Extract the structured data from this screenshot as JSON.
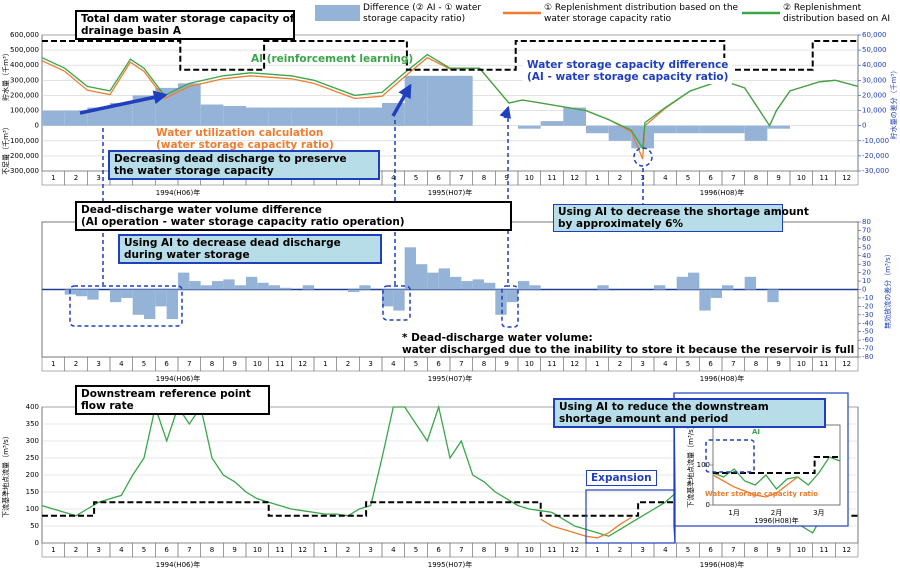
{
  "chart_data": [
    {
      "type": "line",
      "ylabel": "貯水量（千m³）",
      "ylabel_negative": "不足量（千m³）",
      "y2label": "貯水量の差分（千m³）",
      "xlim": [
        0,
        36
      ],
      "ylim": [
        -300000,
        600000
      ],
      "yticks": [
        {
          "value": 600000,
          "label": "600,000"
        },
        {
          "value": 500000,
          "label": "500,000"
        },
        {
          "value": 400000,
          "label": "400,000"
        },
        {
          "value": 300000,
          "label": "300,000"
        },
        {
          "value": 200000,
          "label": "200,000"
        },
        {
          "value": 100000,
          "label": "100,000"
        },
        0,
        {
          "value": -100000,
          "label": "-100,000"
        },
        {
          "value": -200000,
          "label": "-200,000"
        },
        {
          "value": -300000,
          "label": "-300,000"
        }
      ],
      "y2lim": [
        -30000,
        60000
      ],
      "y2ticks": [
        {
          "value": 60000,
          "label": "60,000"
        },
        {
          "value": 50000,
          "label": "50,000"
        },
        {
          "value": 40000,
          "label": "40,000"
        },
        {
          "value": 30000,
          "label": "30,000"
        },
        {
          "value": 20000,
          "label": "20,000"
        },
        {
          "value": 10000,
          "label": "10,000"
        },
        0,
        {
          "value": -10000,
          "label": "-10,000"
        },
        {
          "value": -20000,
          "label": "-20,000"
        },
        {
          "value": -30000,
          "label": "-30,000"
        }
      ],
      "grid": true,
      "month_labels": [
        1,
        2,
        3,
        4,
        5,
        6,
        7,
        8,
        9,
        10,
        11,
        12,
        1,
        2,
        3,
        4,
        5,
        6,
        7,
        8,
        9,
        10,
        11,
        12,
        1,
        2,
        3,
        4,
        5,
        6,
        7,
        8,
        9,
        10,
        11,
        12
      ],
      "year_labels": [
        "1994(H06)年",
        "1995(H07)年",
        "1996(H08)年"
      ],
      "series": [
        {
          "name": "Difference (② AI - ① water storage capacity ratio)",
          "color": "#95b3d7",
          "kind": "bar",
          "axis": "y2",
          "x": [
            0,
            1,
            2,
            3,
            4,
            5,
            6,
            7,
            8,
            9,
            10,
            11,
            12,
            13,
            14,
            15,
            16,
            17,
            18,
            19,
            20,
            21,
            22,
            23,
            24,
            25,
            26,
            27,
            28,
            29,
            30,
            31,
            32,
            33,
            34,
            35
          ],
          "values": [
            10000,
            10000,
            12000,
            15000,
            20000,
            25000,
            28000,
            14000,
            13000,
            12000,
            12000,
            12000,
            12000,
            12000,
            12000,
            15000,
            33000,
            33000,
            33000,
            0,
            0,
            -2000,
            3000,
            12000,
            -5000,
            -10000,
            -15000,
            -5000,
            -5000,
            -5000,
            -5000,
            -10000,
            -2000,
            0,
            0,
            0
          ]
        },
        {
          "name": "① Replenishment distribution based on the water storage capacity ratio",
          "color": "#ed7d31",
          "kind": "line",
          "x": [
            0,
            1,
            2,
            3,
            3.9,
            4.5,
            5.4,
            6.5,
            8,
            9.2,
            11,
            12,
            13.8,
            15,
            16,
            17,
            18,
            19.3,
            20.6,
            21.2,
            22,
            24,
            25,
            26,
            26.5,
            26.6,
            27.5,
            28.6,
            30,
            31,
            32.1,
            32.4,
            33,
            34.3,
            35,
            36
          ],
          "values": [
            430000,
            360000,
            235000,
            205000,
            420000,
            360000,
            180000,
            260000,
            310000,
            330000,
            310000,
            280000,
            180000,
            195000,
            325000,
            450000,
            375000,
            380000,
            150000,
            170000,
            150000,
            100000,
            40000,
            -40000,
            -220000,
            0,
            115000,
            230000,
            300000,
            250000,
            0,
            100000,
            230000,
            290000,
            300000,
            260000
          ]
        },
        {
          "name": "② Replenishment distribution based on AI",
          "color": "#3aa64a",
          "kind": "line",
          "x": [
            0,
            1,
            2,
            3,
            3.9,
            4.5,
            5.4,
            6.5,
            8,
            9.2,
            11,
            12,
            13.8,
            15,
            16,
            17,
            18,
            19.3,
            20.6,
            21.2,
            22,
            24,
            25,
            26,
            26.5,
            26.6,
            27.5,
            28.6,
            30,
            31,
            32.1,
            32.4,
            33,
            34.3,
            35,
            36
          ],
          "values": [
            450000,
            380000,
            260000,
            230000,
            440000,
            380000,
            200000,
            280000,
            330000,
            350000,
            330000,
            300000,
            200000,
            220000,
            350000,
            470000,
            380000,
            380000,
            150000,
            170000,
            150000,
            100000,
            40000,
            -30000,
            -150000,
            20000,
            120000,
            230000,
            300000,
            250000,
            0,
            100000,
            230000,
            290000,
            300000,
            260000
          ]
        },
        {
          "color": "#000000",
          "kind": "line",
          "dashed": true,
          "x": [
            0,
            6.1,
            6.1,
            9.8,
            9.8,
            16.1,
            16.1,
            20.9,
            20.9,
            30.1,
            30.1,
            34,
            34,
            36
          ],
          "values": [
            560000,
            560000,
            370000,
            370000,
            560000,
            560000,
            370000,
            370000,
            560000,
            560000,
            370000,
            370000,
            560000,
            560000
          ]
        }
      ]
    },
    {
      "type": "bar",
      "ylabel": "無効放流の差分（m³/s）",
      "yaxis_side": "right",
      "zero_line": true,
      "xlim": [
        0,
        36
      ],
      "ylim": [
        -80,
        80
      ],
      "yticks": [
        80,
        70,
        60,
        50,
        40,
        30,
        20,
        10,
        0,
        -10,
        -20,
        -30,
        -40,
        -50,
        -60,
        -70,
        -80
      ],
      "grid": false,
      "month_labels": [
        1,
        2,
        3,
        4,
        5,
        6,
        7,
        8,
        9,
        10,
        11,
        12,
        1,
        2,
        3,
        4,
        5,
        6,
        7,
        8,
        9,
        10,
        11,
        12,
        1,
        2,
        3,
        4,
        5,
        6,
        7,
        8,
        9,
        10,
        11,
        12
      ],
      "year_labels": [
        "1994(H06)年",
        "1995(H07)年",
        "1996(H08)年"
      ],
      "x": [
        0,
        0.5,
        1,
        1.5,
        2,
        2.5,
        3,
        3.5,
        4,
        4.5,
        5,
        5.5,
        6,
        6.5,
        7,
        7.5,
        8,
        8.5,
        9,
        9.5,
        10,
        10.5,
        11,
        11.5,
        12,
        12.5,
        13,
        13.5,
        14,
        14.5,
        15,
        15.5,
        16,
        16.5,
        17,
        17.5,
        18,
        18.5,
        19,
        19.5,
        20,
        20.5,
        21,
        21.5,
        22,
        22.5,
        23,
        23.5,
        24,
        24.5,
        25,
        25.5,
        26,
        26.5,
        27,
        27.5,
        28,
        28.5,
        29,
        29.5,
        30,
        30.5,
        31,
        31.5,
        32,
        32.5,
        33,
        33.5,
        34,
        34.5,
        35,
        35.5
      ],
      "series": [
        {
          "color": "#95b3d7",
          "kind": "bar",
          "values": [
            0,
            0,
            -6,
            -8,
            -12,
            0,
            -15,
            -10,
            -30,
            -35,
            -20,
            -35,
            20,
            10,
            5,
            10,
            12,
            5,
            15,
            8,
            5,
            2,
            0,
            5,
            0,
            0,
            0,
            -3,
            5,
            0,
            -20,
            -25,
            50,
            30,
            20,
            25,
            15,
            10,
            12,
            8,
            -30,
            -15,
            10,
            5,
            0,
            0,
            0,
            0,
            0,
            5,
            0,
            0,
            0,
            0,
            5,
            0,
            15,
            20,
            -25,
            -10,
            5,
            0,
            15,
            0,
            -15,
            0,
            0,
            0,
            0,
            0,
            0,
            0
          ]
        }
      ]
    },
    {
      "type": "line",
      "ylabel": "下流基準地点流量（m³/s）",
      "xlim": [
        0,
        36
      ],
      "ylim": [
        0,
        400
      ],
      "yticks": [
        0,
        50,
        100,
        150,
        200,
        250,
        300,
        350,
        400
      ],
      "grid": true,
      "month_labels": [
        1,
        2,
        3,
        4,
        5,
        6,
        7,
        8,
        9,
        10,
        11,
        12,
        1,
        2,
        3,
        4,
        5,
        6,
        7,
        8,
        9,
        10,
        11,
        12,
        1,
        2,
        3,
        4,
        5,
        6,
        7,
        8,
        9,
        10,
        11,
        12
      ],
      "year_labels": [
        "1994(H06)年",
        "1995(H07)年",
        "1996(H08)年"
      ],
      "x": [
        0,
        0.5,
        1,
        1.5,
        2,
        2.5,
        3,
        3.5,
        4,
        4.5,
        5,
        5.5,
        6,
        6.5,
        7,
        7.5,
        8,
        8.5,
        9,
        9.5,
        10,
        10.5,
        11,
        11.5,
        12,
        12.5,
        13,
        13.5,
        14,
        14.5,
        15,
        15.5,
        16,
        16.5,
        17,
        17.5,
        18,
        18.5,
        19,
        19.5,
        20,
        20.5,
        21,
        21.5,
        22,
        22.5,
        23,
        23.5,
        24,
        24.5,
        25,
        25.5,
        26,
        26.5,
        27,
        27.5,
        28,
        28.5,
        29,
        29.5,
        30,
        30.5,
        31,
        31.5,
        32,
        32.5,
        33,
        33.5,
        34,
        34.5,
        35,
        35.5
      ],
      "series": [
        {
          "color": "#3aa64a",
          "kind": "line",
          "values": [
            110,
            100,
            90,
            80,
            100,
            120,
            130,
            140,
            200,
            250,
            400,
            300,
            400,
            350,
            400,
            250,
            200,
            180,
            150,
            130,
            120,
            110,
            100,
            95,
            90,
            85,
            85,
            80,
            100,
            110,
            250,
            400,
            400,
            350,
            300,
            400,
            250,
            300,
            200,
            180,
            150,
            130,
            110,
            100,
            95,
            90,
            70,
            50,
            40,
            30,
            20,
            40,
            60,
            80,
            100,
            120,
            150,
            200,
            180,
            150,
            120,
            110,
            100,
            120,
            150,
            100,
            60,
            50,
            30,
            90,
            100,
            110
          ]
        },
        {
          "color": "#ed7d31",
          "kind": "line",
          "x": [
            22,
            22.5,
            23,
            23.5,
            24,
            24.5,
            25,
            25.5,
            26
          ],
          "values": [
            70,
            50,
            40,
            30,
            20,
            15,
            30,
            55,
            75
          ]
        },
        {
          "color": "#000000",
          "kind": "line",
          "dashed": true,
          "x": [
            0,
            2.3,
            2.3,
            10,
            10,
            14.3,
            14.3,
            22,
            22,
            26.3,
            26.3,
            34,
            34,
            36
          ],
          "values": [
            80,
            80,
            120,
            120,
            80,
            80,
            120,
            120,
            80,
            80,
            120,
            120,
            80,
            80
          ]
        }
      ]
    },
    {
      "type": "line",
      "ylabel": "下流基準地点流量（m³/s）",
      "xlim": [
        0,
        3
      ],
      "ylim": [
        0,
        200
      ],
      "yticks": [
        0,
        100,
        200
      ],
      "grid": false,
      "month_labels": [
        "1月",
        "2月",
        "3月"
      ],
      "year_labels": [
        "1996(H08)年"
      ],
      "labels": [
        "AI",
        "Water storage capacity ratio"
      ],
      "series": [
        {
          "color": "#3aa64a",
          "kind": "line",
          "x": [
            0,
            0.25,
            0.5,
            0.75,
            1,
            1.25,
            1.5,
            1.75,
            2,
            2.25,
            2.5,
            2.75,
            3
          ],
          "values": [
            80,
            70,
            90,
            60,
            50,
            75,
            40,
            65,
            70,
            50,
            80,
            120,
            110
          ]
        },
        {
          "color": "#ed7d31",
          "kind": "line",
          "x": [
            0,
            0.25,
            0.5,
            0.75,
            1,
            1.25,
            1.5,
            1.75,
            2
          ],
          "values": [
            75,
            60,
            45,
            35,
            25,
            20,
            30,
            50,
            70
          ]
        },
        {
          "color": "#000000",
          "kind": "line",
          "dashed": true,
          "x": [
            0,
            2.4,
            2.4,
            3
          ],
          "values": [
            80,
            80,
            120,
            120
          ]
        }
      ]
    }
  ],
  "annotations": [
    {
      "lines": [
        "Total dam water storage capacity of",
        "drainage basin A"
      ]
    },
    {
      "lines": [
        "AI (reinforcement learning)"
      ]
    },
    {
      "lines": [
        "Water storage capacity difference",
        "(AI - water storage capacity ratio)"
      ]
    },
    {
      "lines": [
        "Water utilization calculation",
        "(water storage capacity ratio)"
      ]
    },
    {
      "lines": [
        "Decreasing dead discharge to preserve",
        "the water storage capacity"
      ]
    },
    {
      "lines": [
        "Dead-discharge water volume difference",
        "(AI operation - water storage capacity ratio operation)"
      ]
    },
    {
      "lines": [
        "Using AI to decrease the shortage amount",
        "by approximately 6%"
      ]
    },
    {
      "lines": [
        "Using AI to decrease dead discharge",
        "during water storage"
      ]
    },
    {
      "lines": [
        "* Dead-discharge water volume:",
        "water discharged due to the inability to store it because the reservoir is full"
      ]
    },
    {
      "lines": [
        "Downstream reference point",
        "flow rate"
      ]
    },
    {
      "lines": [
        "Using AI to reduce the downstream",
        "shortage amount and period"
      ]
    },
    {
      "lines": [
        "Expansion"
      ]
    }
  ]
}
